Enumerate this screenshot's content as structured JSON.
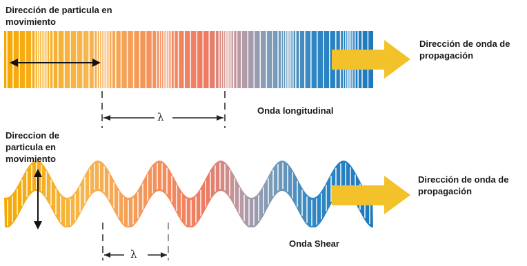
{
  "top_panel": {
    "particle_label": [
      "Dirección de particula en",
      "movimiento"
    ],
    "propagation_label": [
      "Dirección de onda de",
      "propagación"
    ],
    "wave_name": "Onda longitudinal",
    "wavelength_symbol": "λ"
  },
  "bottom_panel": {
    "particle_label": [
      "Direccion de",
      "particula en",
      "movimiento"
    ],
    "propagation_label": [
      "Dirección de onda de",
      "propagación"
    ],
    "wave_name": "Onda Shear",
    "wavelength_symbol": "λ"
  },
  "colors": {
    "gradient": [
      "#f6a800",
      "#f7b64e",
      "#f3895f",
      "#ee7a63",
      "#b99aa5",
      "#7e9cb8",
      "#2f86c4",
      "#1e79bd"
    ],
    "arrow": "#f3c22a",
    "line": "#222222"
  }
}
